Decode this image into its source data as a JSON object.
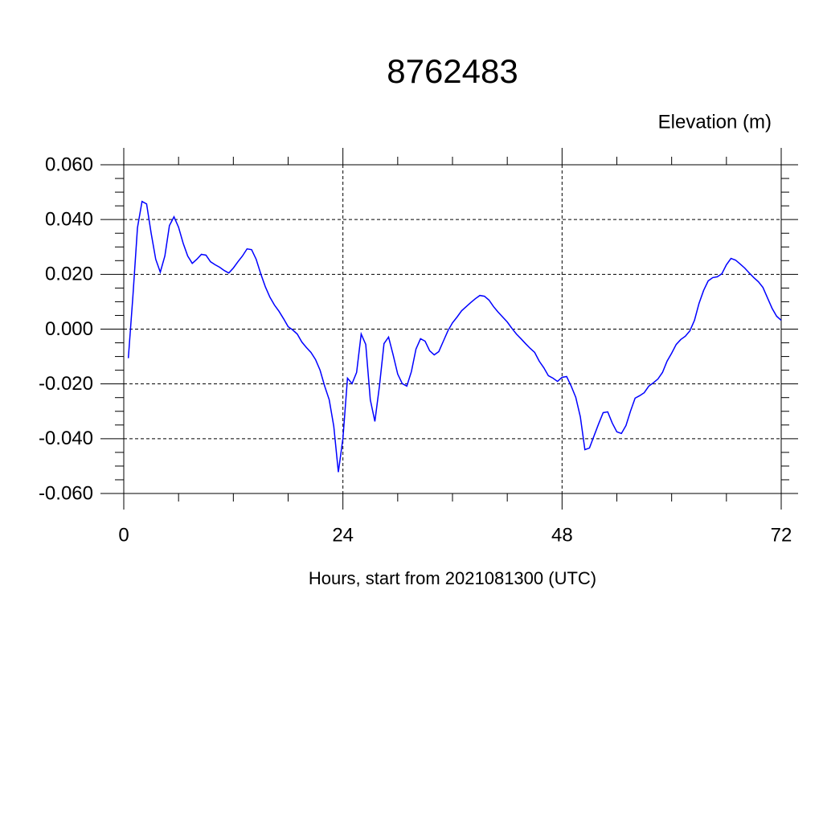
{
  "chart_data": {
    "type": "line",
    "title": "8762483",
    "subtitle": "Elevation (m)",
    "x_label": "Hours, start from 2021081300 (UTC)",
    "x": [
      0.5,
      1,
      1.5,
      2,
      2.5,
      3,
      3.5,
      4,
      4.5,
      5,
      5.5,
      6,
      6.5,
      7,
      7.5,
      8,
      8.5,
      9,
      9.5,
      10,
      10.5,
      11,
      11.5,
      12,
      12.5,
      13,
      13.5,
      14,
      14.5,
      15,
      15.5,
      16,
      16.5,
      17,
      17.5,
      18,
      18.5,
      19,
      19.5,
      20,
      20.5,
      21,
      21.5,
      22,
      22.5,
      23,
      23.5,
      24,
      24.5,
      25,
      25.5,
      26,
      26.5,
      27,
      27.5,
      28,
      28.5,
      29,
      29.5,
      30,
      30.5,
      31,
      31.5,
      32,
      32.5,
      33,
      33.5,
      34,
      34.5,
      35,
      35.5,
      36,
      36.5,
      37,
      37.5,
      38,
      38.5,
      39,
      39.5,
      40,
      40.5,
      41,
      41.5,
      42,
      42.5,
      43,
      43.5,
      44,
      44.5,
      45,
      45.5,
      46,
      46.5,
      47,
      47.5,
      48,
      48.5,
      49,
      49.5,
      50,
      50.5,
      51,
      51.5,
      52,
      52.5,
      53,
      53.5,
      54,
      54.5,
      55,
      55.5,
      56,
      56.5,
      57,
      57.5,
      58,
      58.5,
      59,
      59.5,
      60,
      60.5,
      61,
      61.5,
      62,
      62.5,
      63,
      63.5,
      64,
      64.5,
      65,
      65.5,
      66,
      66.5,
      67,
      67.5,
      68,
      68.5,
      69,
      69.5,
      70,
      70.5,
      71,
      71.5,
      72
    ],
    "series": [
      {
        "name": "Elevation",
        "color": "#0000ff",
        "values": [
          -0.0106,
          0.012,
          0.037,
          0.0466,
          0.0457,
          0.035,
          0.0255,
          0.0208,
          0.0267,
          0.0378,
          0.041,
          0.0372,
          0.0314,
          0.0267,
          0.024,
          0.0255,
          0.0273,
          0.027,
          0.0246,
          0.0235,
          0.0226,
          0.0214,
          0.0205,
          0.0223,
          0.0246,
          0.0267,
          0.0293,
          0.029,
          0.0255,
          0.0202,
          0.0155,
          0.0117,
          0.0088,
          0.0065,
          0.0038,
          0.0009,
          -0.0003,
          -0.0018,
          -0.0047,
          -0.0067,
          -0.0085,
          -0.0111,
          -0.015,
          -0.0208,
          -0.0258,
          -0.0355,
          -0.0522,
          -0.0399,
          -0.0179,
          -0.0199,
          -0.0158,
          -0.0018,
          -0.0056,
          -0.0258,
          -0.0337,
          -0.0208,
          -0.0053,
          -0.0029,
          -0.0094,
          -0.0164,
          -0.0199,
          -0.0208,
          -0.0155,
          -0.0073,
          -0.0035,
          -0.0044,
          -0.0079,
          -0.0094,
          -0.0082,
          -0.0044,
          -0.0006,
          0.0023,
          0.0044,
          0.0067,
          0.0082,
          0.0097,
          0.0111,
          0.0123,
          0.012,
          0.0106,
          0.0082,
          0.0062,
          0.0044,
          0.0026,
          0.0003,
          -0.0018,
          -0.0035,
          -0.0053,
          -0.007,
          -0.0085,
          -0.0117,
          -0.0141,
          -0.017,
          -0.0179,
          -0.0191,
          -0.0176,
          -0.0173,
          -0.0208,
          -0.0249,
          -0.032,
          -0.044,
          -0.0434,
          -0.039,
          -0.0346,
          -0.0305,
          -0.0302,
          -0.0343,
          -0.0375,
          -0.0381,
          -0.0352,
          -0.0299,
          -0.0252,
          -0.0243,
          -0.0232,
          -0.0208,
          -0.0196,
          -0.0182,
          -0.0158,
          -0.0117,
          -0.0088,
          -0.0056,
          -0.0038,
          -0.0026,
          -0.0006,
          0.0032,
          0.0094,
          0.0141,
          0.0176,
          0.0188,
          0.0191,
          0.0202,
          0.0235,
          0.0258,
          0.0252,
          0.0238,
          0.0223,
          0.0205,
          0.0188,
          0.0173,
          0.0152,
          0.0114,
          0.0076,
          0.0047,
          0.0032
        ]
      }
    ],
    "xlim": [
      0,
      72
    ],
    "xticks": [
      0,
      24,
      48,
      72
    ],
    "ylim": [
      -0.06,
      0.06
    ],
    "yticks": [
      {
        "value": -0.06,
        "label": "-0.060"
      },
      {
        "value": -0.04,
        "label": "-0.040"
      },
      {
        "value": -0.02,
        "label": "-0.020"
      },
      {
        "value": 0,
        "label": "0.000"
      },
      {
        "value": 0.02,
        "label": "0.020"
      },
      {
        "value": 0.04,
        "label": "0.040"
      },
      {
        "value": 0.06,
        "label": "0.060"
      }
    ],
    "grid": true
  }
}
